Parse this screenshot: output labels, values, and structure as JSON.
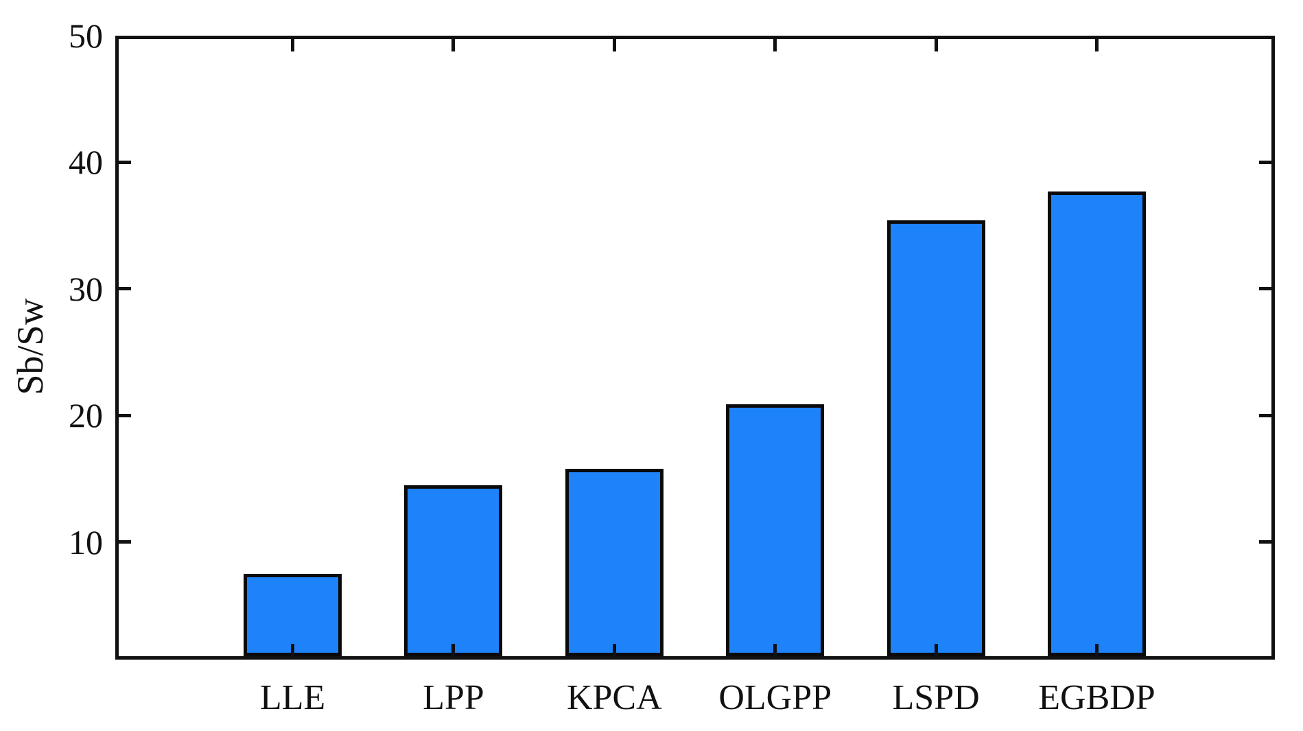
{
  "chart_data": {
    "type": "bar",
    "title": "",
    "xlabel": "",
    "ylabel": "Sb/Sw",
    "categories": [
      "LLE",
      "LPP",
      "KPCA",
      "OLGPP",
      "LSPD",
      "EGBDP"
    ],
    "values": [
      7.5,
      14.5,
      15.8,
      20.9,
      35.4,
      37.7
    ],
    "yticks": [
      10,
      20,
      30,
      40,
      50
    ],
    "ylim": [
      1,
      50
    ],
    "grid": false,
    "legend_position": "none",
    "bar_fill_color": "#1e82f9",
    "bar_edge_color": "#0a0a0a",
    "axis_color": "#111111",
    "background_color": "#ffffff"
  }
}
